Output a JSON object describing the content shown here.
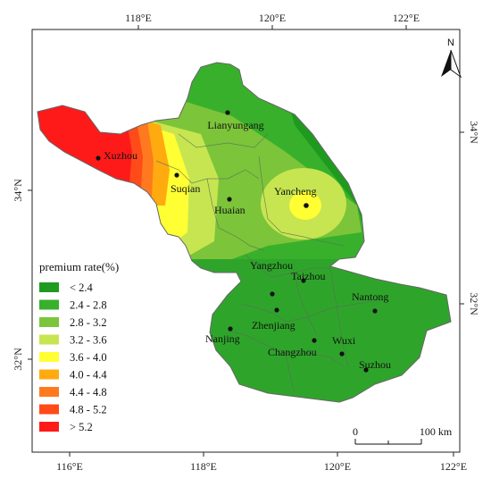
{
  "axes": {
    "top_ticks": [
      "118°E",
      "120°E",
      "122°E"
    ],
    "bottom_ticks": [
      "116°E",
      "118°E",
      "120°E",
      "122°E"
    ],
    "left_ticks": [
      "34°N",
      "32°N"
    ],
    "right_ticks": [
      "34°N",
      "32°N"
    ]
  },
  "north_arrow": {
    "label": "N"
  },
  "legend": {
    "title": "premium rate(%)",
    "classes": [
      {
        "label": "< 2.4",
        "color": "#1e9b1e"
      },
      {
        "label": "2.4 - 2.8",
        "color": "#38b02c"
      },
      {
        "label": "2.8 - 3.2",
        "color": "#7cc43a"
      },
      {
        "label": "3.2 - 3.6",
        "color": "#c7e550"
      },
      {
        "label": "3.6 - 4.0",
        "color": "#ffff33"
      },
      {
        "label": "4.0 - 4.4",
        "color": "#ffab10"
      },
      {
        "label": "4.4 - 4.8",
        "color": "#ff7a1f"
      },
      {
        "label": "4.8 - 5.2",
        "color": "#ff4a1a"
      },
      {
        "label": "> 5.2",
        "color": "#ff1a1a"
      }
    ]
  },
  "cities": [
    {
      "name": "Lianyungang"
    },
    {
      "name": "Xuzhou"
    },
    {
      "name": "Suqian"
    },
    {
      "name": "Huaian"
    },
    {
      "name": "Yancheng"
    },
    {
      "name": "Yangzhou"
    },
    {
      "name": "Taizhou"
    },
    {
      "name": "Nantong"
    },
    {
      "name": "Zhenjiang"
    },
    {
      "name": "Nanjing"
    },
    {
      "name": "Changzhou"
    },
    {
      "name": "Wuxi"
    },
    {
      "name": "Suzhou"
    }
  ],
  "scale_bar": {
    "labels": [
      "0",
      "100 km"
    ]
  }
}
